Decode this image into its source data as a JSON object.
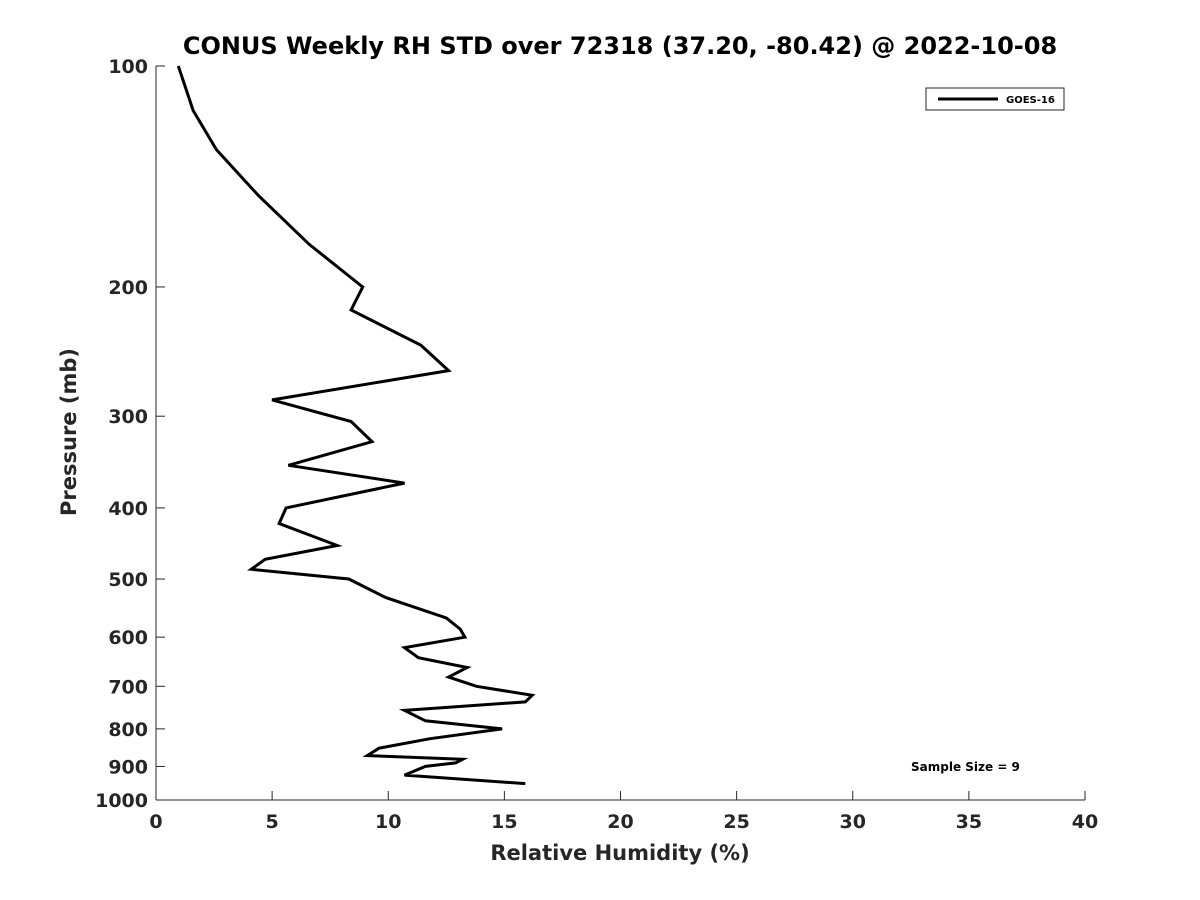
{
  "chart_data": {
    "type": "line",
    "title": "CONUS Weekly RH STD over 72318 (37.20, -80.42) @ 2022-10-08",
    "xlabel": "Relative Humidity (%)",
    "ylabel": "Pressure (mb)",
    "xlim": [
      0,
      40
    ],
    "ylim": [
      1000,
      100
    ],
    "yscale": "log",
    "y_inverted": true,
    "xticks": [
      0,
      5,
      10,
      15,
      20,
      25,
      30,
      35,
      40
    ],
    "yticks": [
      100,
      200,
      300,
      400,
      500,
      600,
      700,
      800,
      900,
      1000
    ],
    "grid": false,
    "legend_position": "top-right",
    "annotation": "Sample Size = 9",
    "series": [
      {
        "name": "GOES-16",
        "color": "#000000",
        "x": [
          0.96,
          1.6,
          2.6,
          4.4,
          6.6,
          8.9,
          8.4,
          11.4,
          12.6,
          5.0,
          8.4,
          9.3,
          5.7,
          10.7,
          5.6,
          5.3,
          7.8,
          4.7,
          4.1,
          8.3,
          9.9,
          12.5,
          13.1,
          13.3,
          10.7,
          11.3,
          13.4,
          12.6,
          13.8,
          16.2,
          15.9,
          10.7,
          11.6,
          14.9,
          11.8,
          9.6,
          9.1,
          13.2,
          12.9,
          11.6,
          10.7,
          15.9
        ],
        "y": [
          100,
          115,
          130,
          150,
          175,
          200,
          215,
          240,
          260,
          285,
          305,
          325,
          350,
          370,
          400,
          420,
          450,
          470,
          485,
          500,
          530,
          565,
          585,
          600,
          620,
          640,
          660,
          680,
          700,
          720,
          735,
          755,
          780,
          800,
          825,
          850,
          870,
          880,
          890,
          900,
          925,
          950
        ]
      }
    ]
  }
}
